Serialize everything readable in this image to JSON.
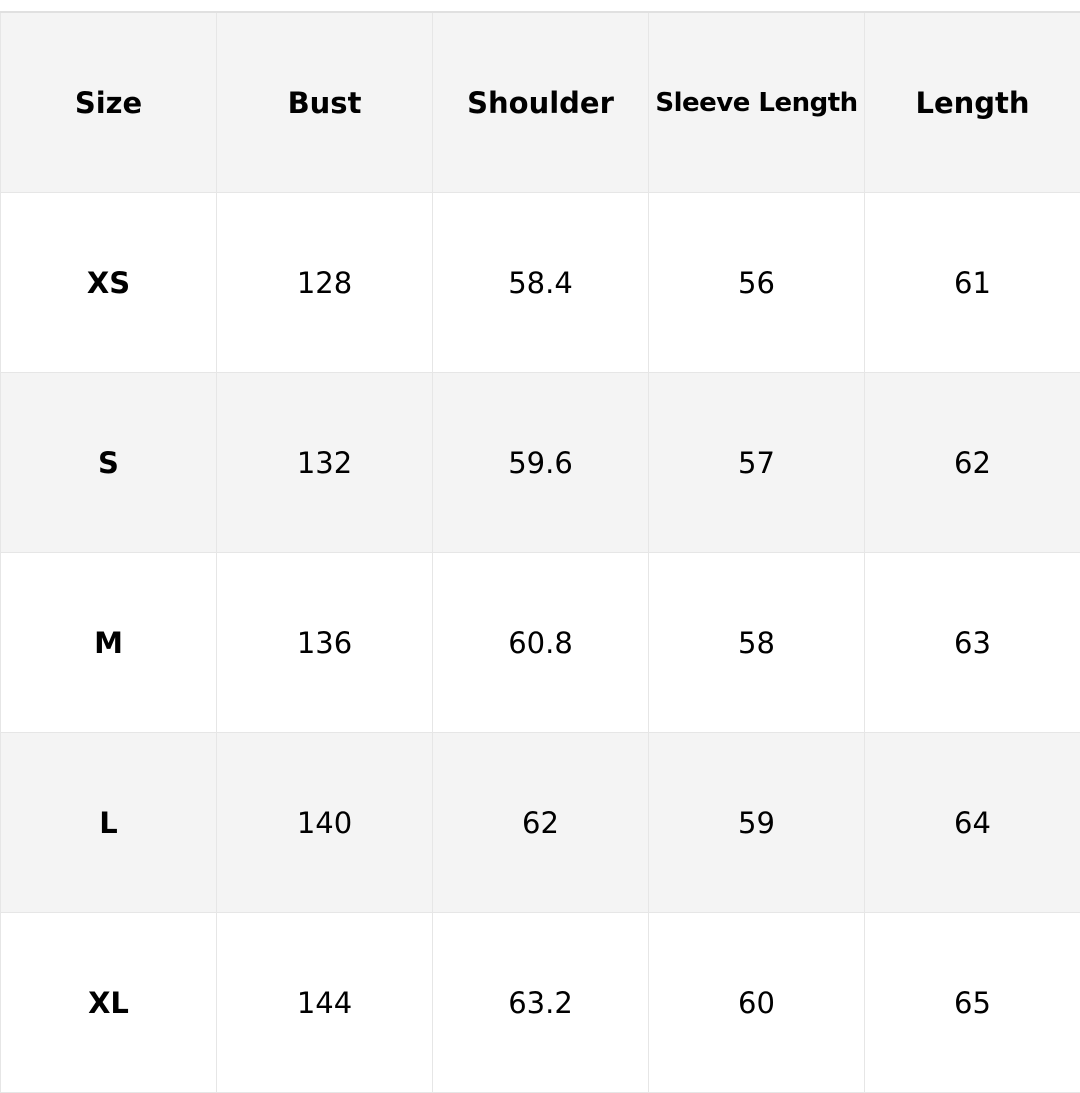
{
  "table": {
    "headers": [
      "Size",
      "Bust",
      "Shoulder",
      "Sleeve Length",
      "Length"
    ],
    "rows": [
      [
        "XS",
        "128",
        "58.4",
        "56",
        "61"
      ],
      [
        "S",
        "132",
        "59.6",
        "57",
        "62"
      ],
      [
        "M",
        "136",
        "60.8",
        "58",
        "63"
      ],
      [
        "L",
        "140",
        "62",
        "59",
        "64"
      ],
      [
        "XL",
        "144",
        "63.2",
        "60",
        "65"
      ]
    ]
  },
  "colors": {
    "header_bg": "#f4f4f4",
    "alt_row_bg": "#f4f4f4",
    "border": "#e6e6e6",
    "text": "#000000"
  }
}
